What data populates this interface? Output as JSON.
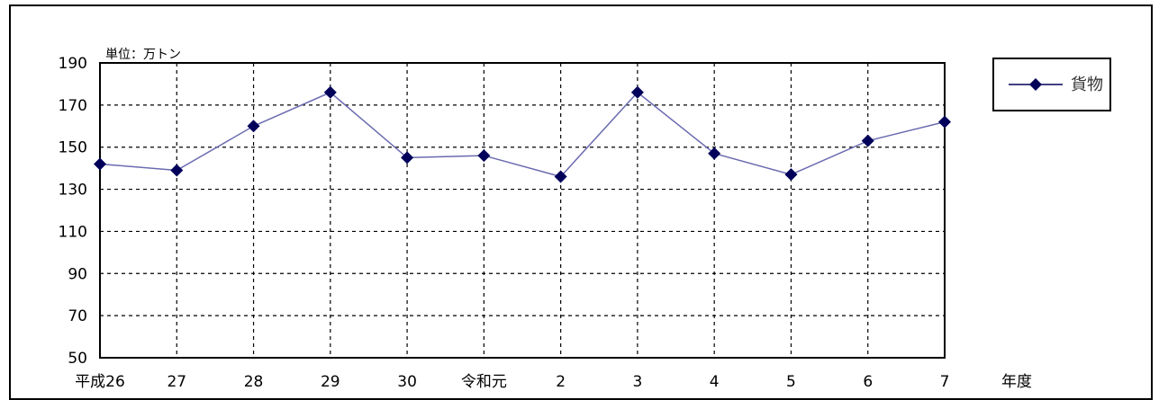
{
  "chart_data": {
    "type": "line",
    "title": "",
    "unit_label": "単位：万トン",
    "xlabel": "年度",
    "ylabel": "",
    "ylim": [
      50,
      190
    ],
    "yticks": [
      50,
      70,
      90,
      110,
      130,
      150,
      170,
      190
    ],
    "categories": [
      "平成26",
      "27",
      "28",
      "29",
      "30",
      "令和元",
      "2",
      "3",
      "4",
      "5",
      "6",
      "7"
    ],
    "grid": true,
    "legend": "top-right",
    "series": [
      {
        "name": "貨物",
        "color": "#00005a",
        "values": [
          142,
          139,
          160,
          176,
          145,
          146,
          136,
          176,
          147,
          137,
          153,
          162
        ]
      }
    ]
  }
}
